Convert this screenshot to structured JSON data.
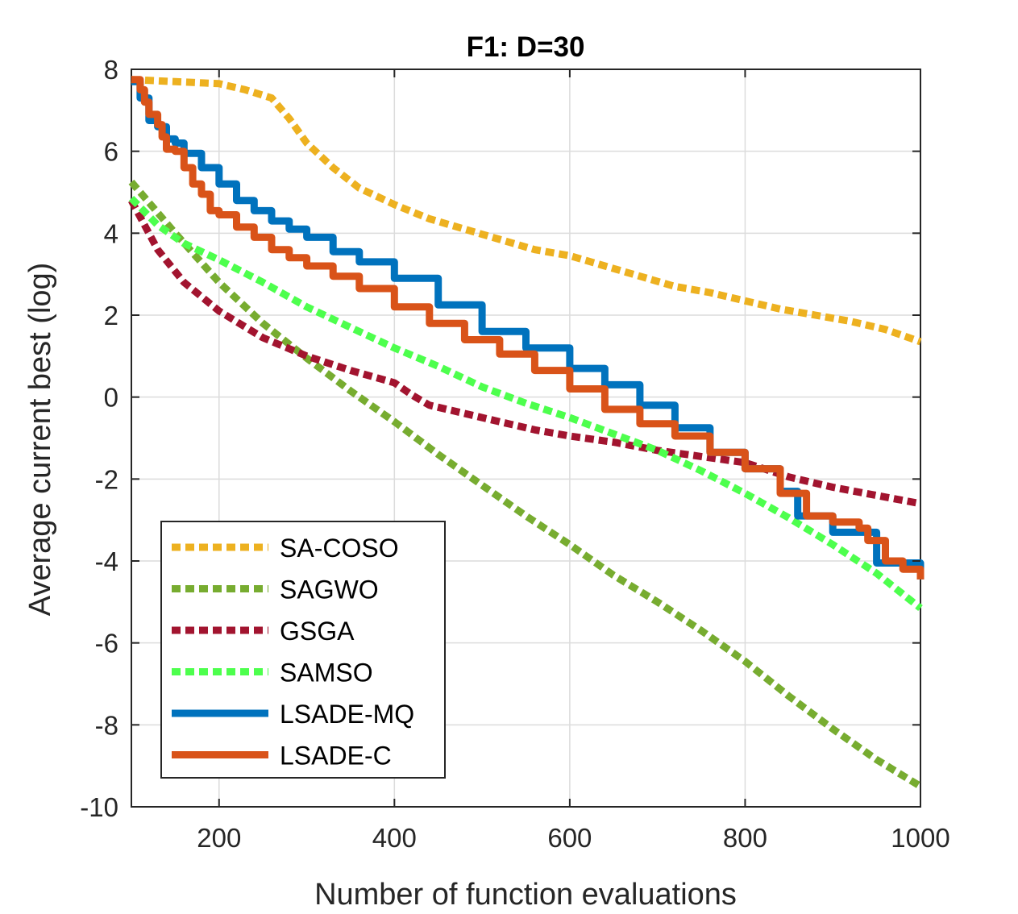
{
  "chart_data": {
    "type": "line",
    "title": "F1: D=30",
    "xlabel": "Number of function evaluations",
    "ylabel": "Average current best (log)",
    "xlim": [
      100,
      1000
    ],
    "ylim": [
      -10,
      8
    ],
    "xticks": [
      200,
      400,
      600,
      800,
      1000
    ],
    "yticks": [
      -10,
      -8,
      -6,
      -4,
      -2,
      0,
      2,
      4,
      6,
      8
    ],
    "grid": true,
    "legend_position": "bottom-left",
    "series": [
      {
        "name": "SA-COSO",
        "color": "#EDB120",
        "style": "dotted",
        "stairs": false,
        "x": [
          100,
          150,
          200,
          230,
          260,
          280,
          300,
          330,
          360,
          400,
          440,
          480,
          520,
          560,
          600,
          640,
          680,
          720,
          760,
          800,
          840,
          880,
          920,
          960,
          1000
        ],
        "y": [
          7.75,
          7.7,
          7.65,
          7.5,
          7.3,
          6.8,
          6.2,
          5.6,
          5.1,
          4.7,
          4.35,
          4.1,
          3.85,
          3.6,
          3.45,
          3.2,
          2.95,
          2.7,
          2.55,
          2.35,
          2.15,
          2.0,
          1.85,
          1.65,
          1.35
        ]
      },
      {
        "name": "SAGWO",
        "color": "#77AC30",
        "style": "dotted",
        "stairs": false,
        "x": [
          100,
          150,
          200,
          250,
          300,
          350,
          400,
          450,
          500,
          550,
          600,
          650,
          700,
          750,
          800,
          850,
          900,
          950,
          1000
        ],
        "y": [
          5.25,
          4.0,
          2.8,
          1.8,
          0.95,
          0.15,
          -0.6,
          -1.4,
          -2.15,
          -2.9,
          -3.6,
          -4.35,
          -5.0,
          -5.7,
          -6.45,
          -7.3,
          -8.1,
          -8.85,
          -9.5
        ]
      },
      {
        "name": "GSGA",
        "color": "#A2142F",
        "style": "dotted",
        "stairs": false,
        "x": [
          100,
          130,
          160,
          200,
          250,
          300,
          350,
          400,
          420,
          440,
          480,
          520,
          560,
          600,
          650,
          700,
          750,
          800,
          850,
          900,
          950,
          1000
        ],
        "y": [
          4.8,
          3.6,
          2.8,
          2.1,
          1.45,
          1.0,
          0.65,
          0.35,
          0.05,
          -0.2,
          -0.4,
          -0.6,
          -0.8,
          -0.95,
          -1.1,
          -1.3,
          -1.45,
          -1.6,
          -1.95,
          -2.2,
          -2.4,
          -2.6
        ]
      },
      {
        "name": "SAMSO",
        "color": "#4DFF4D",
        "style": "dotted",
        "stairs": false,
        "x": [
          100,
          130,
          160,
          200,
          250,
          300,
          350,
          400,
          450,
          500,
          550,
          600,
          650,
          700,
          750,
          800,
          850,
          900,
          950,
          1000
        ],
        "y": [
          4.85,
          4.2,
          3.75,
          3.35,
          2.8,
          2.2,
          1.7,
          1.2,
          0.75,
          0.25,
          -0.15,
          -0.5,
          -0.9,
          -1.3,
          -1.8,
          -2.35,
          -2.95,
          -3.6,
          -4.3,
          -5.15
        ]
      },
      {
        "name": "LSADE-MQ",
        "color": "#0072BD",
        "style": "solid",
        "stairs": true,
        "x": [
          100,
          110,
          120,
          130,
          140,
          150,
          160,
          180,
          200,
          220,
          240,
          260,
          280,
          300,
          330,
          360,
          400,
          450,
          500,
          550,
          600,
          640,
          680,
          720,
          760,
          800,
          840,
          860,
          900,
          950,
          1000
        ],
        "y": [
          7.7,
          7.3,
          6.75,
          6.6,
          6.3,
          6.2,
          5.95,
          5.6,
          5.2,
          4.8,
          4.55,
          4.3,
          4.1,
          3.9,
          3.55,
          3.3,
          2.9,
          2.25,
          1.6,
          1.2,
          0.7,
          0.3,
          -0.2,
          -0.75,
          -1.35,
          -1.75,
          -2.3,
          -2.9,
          -3.3,
          -4.05,
          -4.45
        ]
      },
      {
        "name": "LSADE-C",
        "color": "#D95319",
        "style": "solid",
        "stairs": true,
        "x": [
          100,
          110,
          115,
          120,
          130,
          135,
          140,
          150,
          160,
          170,
          180,
          190,
          200,
          220,
          240,
          260,
          280,
          300,
          330,
          360,
          400,
          440,
          480,
          520,
          560,
          600,
          640,
          680,
          720,
          760,
          800,
          840,
          870,
          900,
          930,
          940,
          960,
          980,
          1000
        ],
        "y": [
          7.75,
          7.5,
          7.2,
          6.9,
          6.65,
          6.35,
          6.05,
          6.0,
          5.6,
          5.2,
          4.95,
          4.55,
          4.45,
          4.15,
          3.9,
          3.6,
          3.4,
          3.2,
          2.95,
          2.65,
          2.2,
          1.8,
          1.4,
          1.05,
          0.65,
          0.2,
          -0.3,
          -0.65,
          -0.95,
          -1.35,
          -1.75,
          -2.35,
          -2.9,
          -3.05,
          -3.2,
          -3.5,
          -4.0,
          -4.2,
          -4.45
        ]
      }
    ]
  }
}
